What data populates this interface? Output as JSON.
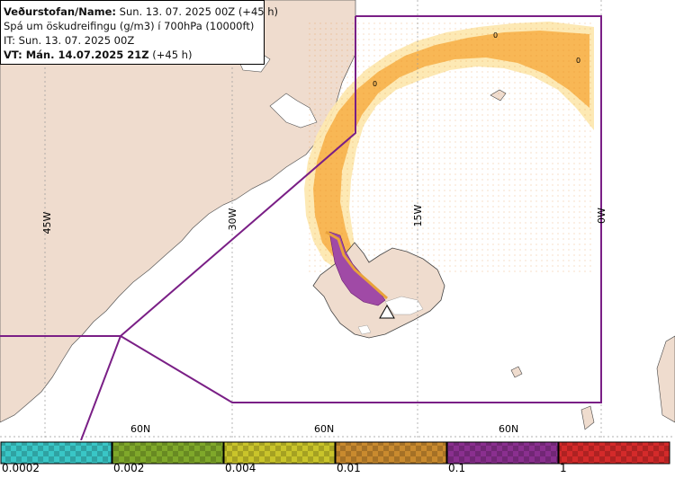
{
  "info": {
    "line1_bold": "Veðurstofan/Name:",
    "line1_rest": " Sun. 13. 07. 2025 00Z (+45 h)",
    "line2": "Spá um öskudreifingu (g/m3) í 700hPa (10000ft)",
    "line3": "IT: Sun. 13. 07. 2025 00Z",
    "line4_bold": "VT: Mán. 14.07.2025 21Z",
    "line4_rest": " (+45 h)"
  },
  "map": {
    "lon_labels": [
      "45W",
      "30W",
      "15W",
      "0W"
    ],
    "lat_labels": [
      "60N",
      "60N",
      "60N"
    ],
    "contour_labels": [
      "0",
      "0",
      "0"
    ]
  },
  "legend": {
    "colors": [
      "#39c6c6",
      "#7fa82a",
      "#c9c42a",
      "#c98a2e",
      "#8a2f8f",
      "#d42a2a"
    ],
    "ticks": [
      "0.0002",
      "0.002",
      "0.004",
      "0.01",
      "0.1",
      "1"
    ]
  }
}
